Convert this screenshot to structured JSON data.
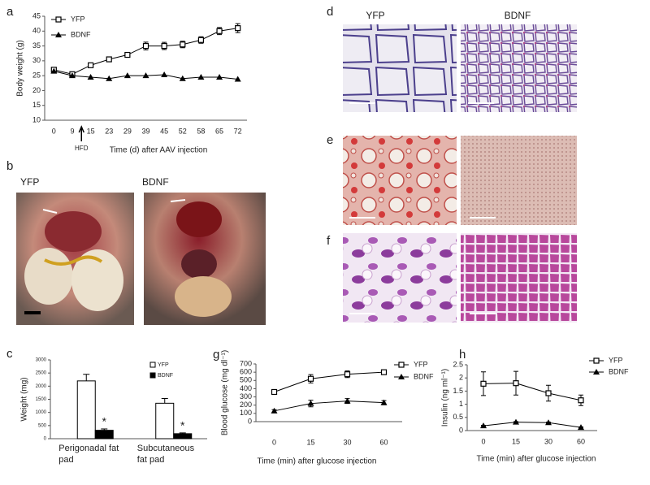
{
  "chart_data": [
    {
      "type": "line",
      "panel": "a",
      "ylabel": "Body weight (g)",
      "xlabel": "Time (d) after AAV injection",
      "annotation": "HFD",
      "categories": [
        "0",
        "9",
        "15",
        "23",
        "29",
        "39",
        "45",
        "52",
        "58",
        "65",
        "72"
      ],
      "series": [
        {
          "name": "YFP",
          "color": "#000000",
          "marker": "square-open",
          "values": [
            27,
            25.5,
            28.5,
            30.5,
            32,
            35,
            35,
            35.5,
            37,
            40,
            41
          ],
          "errors": [
            0.7,
            0.7,
            0.7,
            0.5,
            0.6,
            1.3,
            1.2,
            1.1,
            1.1,
            1.2,
            1.5
          ]
        },
        {
          "name": "BDNF",
          "color": "#000000",
          "marker": "triangle",
          "values": [
            26.5,
            25,
            24.5,
            24,
            25,
            25,
            25.3,
            24,
            24.5,
            24.5,
            23.8
          ]
        }
      ],
      "ylim": [
        10,
        45
      ],
      "yticks": [
        10,
        15,
        20,
        25,
        30,
        35,
        40,
        45
      ],
      "legend": "upper left"
    },
    {
      "type": "bar",
      "panel": "c",
      "ylabel": "Weight (mg)",
      "categories": [
        "Perigonadal fat pad",
        "Subcutaneous fat pad"
      ],
      "series": [
        {
          "name": "YFP",
          "color": "#ffffff",
          "values": [
            2200,
            1350
          ],
          "errors": [
            250,
            180
          ]
        },
        {
          "name": "BDNF",
          "color": "#000000",
          "values": [
            320,
            190
          ],
          "errors": [
            50,
            30
          ],
          "significance": [
            "*",
            "*"
          ]
        }
      ],
      "ylim": [
        0,
        3000
      ],
      "yticks": [
        0,
        500,
        1000,
        1500,
        2000,
        2500,
        3000
      ],
      "legend": "upper right"
    },
    {
      "type": "line",
      "panel": "g",
      "ylabel": "Blood glucose (mg dl⁻¹)",
      "xlabel": "Time (min) after glucose injection",
      "categories": [
        "0",
        "15",
        "30",
        "60"
      ],
      "series": [
        {
          "name": "YFP",
          "color": "#000000",
          "marker": "square-open",
          "values": [
            360,
            520,
            575,
            600
          ],
          "errors": [
            20,
            50,
            40,
            25
          ]
        },
        {
          "name": "BDNF",
          "color": "#000000",
          "marker": "triangle",
          "values": [
            130,
            220,
            250,
            230
          ],
          "errors": [
            15,
            40,
            30,
            25
          ]
        }
      ],
      "ylim": [
        0,
        700
      ],
      "yticks": [
        0,
        100,
        200,
        300,
        400,
        500,
        600,
        700
      ],
      "legend": "upper right"
    },
    {
      "type": "line",
      "panel": "h",
      "ylabel": "Insulin (ng ml⁻¹)",
      "xlabel": "Time (min) after glucose injection",
      "categories": [
        "0",
        "15",
        "30",
        "60"
      ],
      "series": [
        {
          "name": "YFP",
          "color": "#000000",
          "marker": "square-open",
          "values": [
            1.78,
            1.8,
            1.42,
            1.15
          ],
          "errors": [
            0.45,
            0.45,
            0.3,
            0.2
          ]
        },
        {
          "name": "BDNF",
          "color": "#000000",
          "marker": "triangle",
          "values": [
            0.18,
            0.32,
            0.3,
            0.12
          ],
          "errors": [
            0.02,
            0.02,
            0.02,
            0.02
          ]
        }
      ],
      "ylim": [
        0,
        2.5
      ],
      "yticks": [
        0,
        0.5,
        1,
        1.5,
        2,
        2.5
      ],
      "legend": "upper right"
    }
  ],
  "photos": {
    "b": {
      "panel": "b",
      "labels": [
        "YFP",
        "BDNF"
      ]
    },
    "d": {
      "panel": "d",
      "labels": [
        "YFP",
        "BDNF"
      ]
    },
    "e": {
      "panel": "e"
    },
    "f": {
      "panel": "f"
    }
  }
}
